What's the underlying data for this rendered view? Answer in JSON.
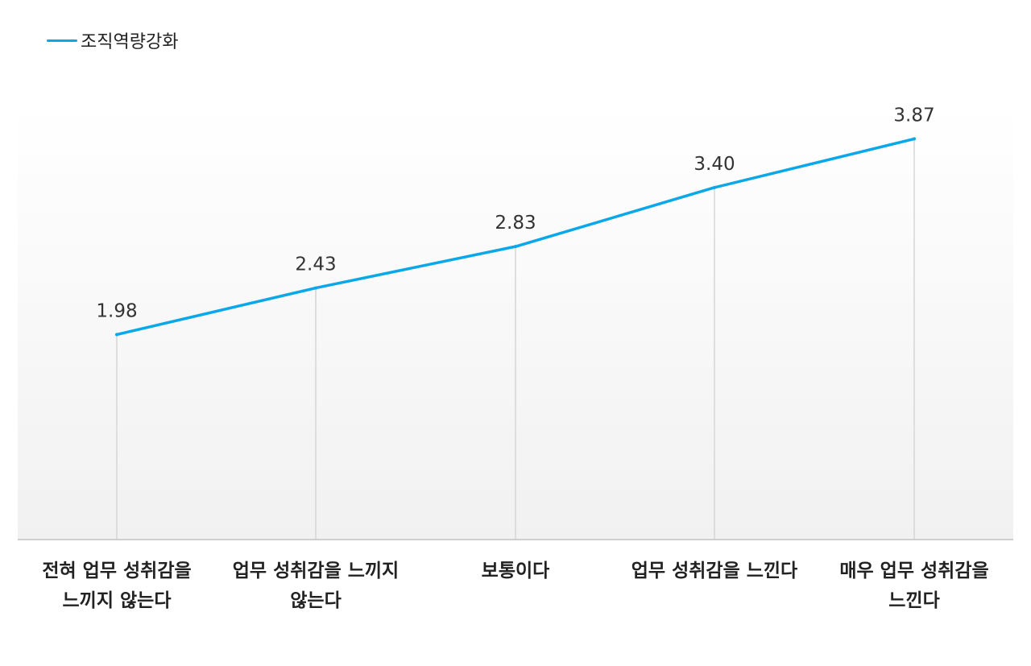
{
  "chart_data": {
    "type": "line",
    "categories": [
      [
        "전혀 업무 성취감을",
        "느끼지 않는다"
      ],
      [
        "업무 성취감을 느끼지",
        "않는다"
      ],
      [
        "보통이다"
      ],
      [
        "업무 성취감을 느낀다"
      ],
      [
        "매우 업무 성취감을",
        "느낀다"
      ]
    ],
    "series": [
      {
        "name": "조직역량강화",
        "values": [
          1.98,
          2.43,
          2.83,
          3.4,
          3.87
        ],
        "value_labels": [
          "1.98",
          "2.43",
          "2.83",
          "3.40",
          "3.87"
        ]
      }
    ],
    "ylim": [
      0,
      4.2
    ],
    "grid": "vertical drop lines at each category",
    "legend": "top-left",
    "colors": {
      "line": "#0aa8e8",
      "background_top": "#ffffff",
      "background_bottom": "#f1f1f1",
      "dropline": "#d6d6d6",
      "baseline": "#cfcfcf"
    }
  }
}
